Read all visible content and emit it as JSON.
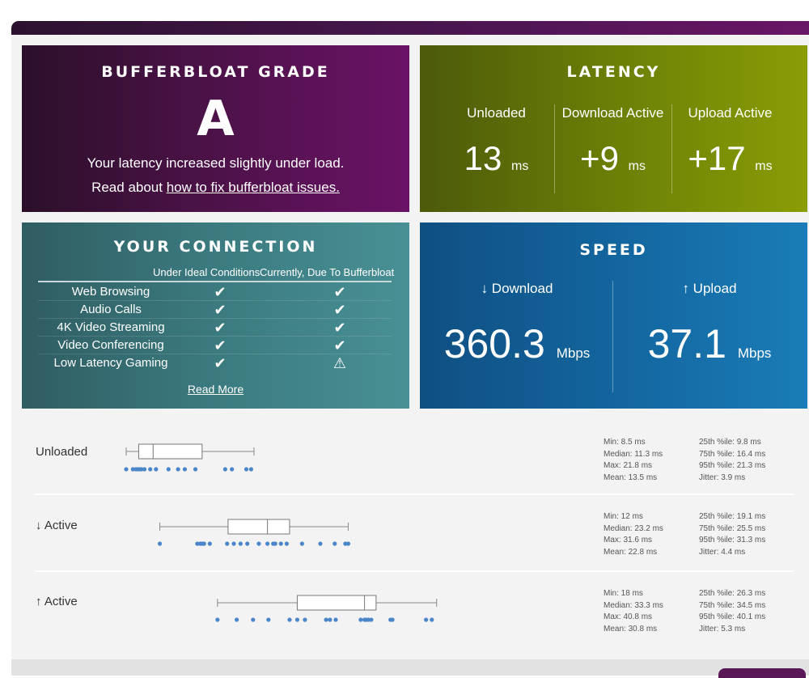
{
  "grade": {
    "title": "BUFFERBLOAT GRADE",
    "letter": "A",
    "line1": "Your latency increased slightly under load.",
    "line2_prefix": "Read about ",
    "link": "how to fix bufferbloat issues."
  },
  "latency": {
    "title": "LATENCY",
    "cols": [
      {
        "label": "Unloaded",
        "value": "13",
        "unit": "ms"
      },
      {
        "label": "Download Active",
        "value": "+9",
        "unit": "ms"
      },
      {
        "label": "Upload Active",
        "value": "+17",
        "unit": "ms"
      }
    ]
  },
  "connection": {
    "title": "YOUR CONNECTION",
    "col1": "Under Ideal Conditions",
    "col2": "Currently, Due To Bufferbloat",
    "rows": [
      {
        "name": "Web Browsing",
        "ideal": "✔",
        "current": "✔"
      },
      {
        "name": "Audio Calls",
        "ideal": "✔",
        "current": "✔"
      },
      {
        "name": "4K Video Streaming",
        "ideal": "✔",
        "current": "✔"
      },
      {
        "name": "Video Conferencing",
        "ideal": "✔",
        "current": "✔"
      },
      {
        "name": "Low Latency Gaming",
        "ideal": "✔",
        "current": "⚠"
      }
    ],
    "read_more": "Read More"
  },
  "speed": {
    "title": "SPEED",
    "download_label": "↓ Download",
    "download_value": "360.3",
    "upload_label": "↑ Upload",
    "upload_value": "37.1",
    "unit": "Mbps"
  },
  "chart_data": [
    {
      "type": "boxplot",
      "name": "Unloaded",
      "label": "Unloaded",
      "min": 8.5,
      "q1": 9.8,
      "median": 11.3,
      "q3": 16.4,
      "max": 21.8,
      "p95": 21.3,
      "points": [
        8.5,
        9.2,
        9.5,
        9.7,
        9.9,
        10.1,
        10.4,
        11.0,
        11.6,
        12.9,
        13.9,
        14.6,
        15.7,
        18.8,
        19.5,
        21.0,
        21.5
      ],
      "stats": [
        [
          "Min: 8.5 ms",
          "25th %ile: 9.8 ms"
        ],
        [
          "Median: 11.3 ms",
          "75th %ile: 16.4 ms"
        ],
        [
          "Max: 21.8 ms",
          "95th %ile: 21.3 ms"
        ],
        [
          "Mean: 13.5 ms",
          "Jitter: 3.9 ms"
        ]
      ]
    },
    {
      "type": "boxplot",
      "name": "↓ Active",
      "label": "↓ Active",
      "min": 12,
      "q1": 19.1,
      "median": 23.2,
      "q3": 25.5,
      "max": 31.6,
      "p95": 31.3,
      "points": [
        12,
        15.9,
        16.2,
        16.4,
        16.6,
        17.2,
        19.0,
        19.7,
        20.4,
        21.1,
        22.3,
        23.2,
        23.8,
        24.0,
        24.6,
        25.2,
        26.8,
        28.7,
        30.2,
        31.3,
        31.6
      ],
      "stats": [
        [
          "Min: 12 ms",
          "25th %ile: 19.1 ms"
        ],
        [
          "Median: 23.2 ms",
          "75th %ile: 25.5 ms"
        ],
        [
          "Max: 31.6 ms",
          "95th %ile: 31.3 ms"
        ],
        [
          "Mean: 22.8 ms",
          "Jitter: 4.4 ms"
        ]
      ]
    },
    {
      "type": "boxplot",
      "name": "↑ Active",
      "label": "↑ Active",
      "min": 18,
      "q1": 26.3,
      "median": 33.3,
      "q3": 34.5,
      "max": 40.8,
      "p95": 40.1,
      "points": [
        18,
        20.0,
        21.7,
        23.3,
        25.5,
        26.3,
        27.1,
        29.3,
        29.7,
        30.3,
        32.9,
        33.3,
        33.5,
        33.7,
        34.0,
        36.0,
        36.2,
        39.7,
        40.3
      ],
      "stats": [
        [
          "Min: 18 ms",
          "25th %ile: 26.3 ms"
        ],
        [
          "Median: 33.3 ms",
          "75th %ile: 34.5 ms"
        ],
        [
          "Max: 40.8 ms",
          "95th %ile: 40.1 ms"
        ],
        [
          "Mean: 30.8 ms",
          "Jitter: 5.3 ms"
        ]
      ]
    }
  ],
  "colors": {
    "grade_bg": "#4a1246",
    "latency_bg": "#6b7f06",
    "connection_bg": "#3b7b80",
    "speed_bg": "#13659e",
    "dot": "#4a86c8"
  }
}
